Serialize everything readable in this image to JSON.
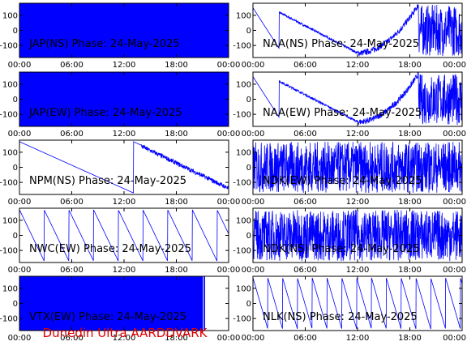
{
  "footer": "Dunedin Ultra AARDDVARK",
  "colors": {
    "trace": "#0000ff",
    "axes": "#000000",
    "footer": "#e00000"
  },
  "chart_data": [
    {
      "type": "line",
      "title": "JAP(NS) Phase: 24-May-2025",
      "pattern": "saturated",
      "xticks": [
        "00:00",
        "06:00",
        "12:00",
        "18:00",
        "00:00"
      ],
      "yticks": [
        "100",
        "0",
        "-100"
      ],
      "ylim": [
        -180,
        180
      ],
      "xlim": [
        0,
        24
      ]
    },
    {
      "type": "line",
      "title": "NAA(NS) Phase: 24-May-2025",
      "pattern": "mixed",
      "xticks": [
        "00:00",
        "06:00",
        "12:00",
        "18:00",
        "00:00"
      ],
      "yticks": [
        "100",
        "0",
        "-100"
      ],
      "ylim": [
        -180,
        180
      ],
      "xlim": [
        0,
        24
      ]
    },
    {
      "type": "line",
      "title": "JAP(EW) Phase: 24-May-2025",
      "pattern": "saturated",
      "xticks": [
        "00:00",
        "06:00",
        "12:00",
        "18:00",
        "00:00"
      ],
      "yticks": [
        "100",
        "0",
        "-100"
      ],
      "ylim": [
        -180,
        180
      ],
      "xlim": [
        0,
        24
      ]
    },
    {
      "type": "line",
      "title": "NAA(EW) Phase: 24-May-2025",
      "pattern": "mixed",
      "xticks": [
        "00:00",
        "06:00",
        "12:00",
        "18:00",
        "00:00"
      ],
      "yticks": [
        "100",
        "0",
        "-100"
      ],
      "ylim": [
        -180,
        180
      ],
      "xlim": [
        0,
        24
      ]
    },
    {
      "type": "line",
      "title": "NPM(NS) Phase: 24-May-2025",
      "pattern": "drift",
      "xticks": [
        "00:00",
        "06:00",
        "12:00",
        "18:00",
        "00:00"
      ],
      "yticks": [
        "100",
        "0",
        "-100"
      ],
      "ylim": [
        -180,
        180
      ],
      "xlim": [
        0,
        24
      ]
    },
    {
      "type": "line",
      "title": "NDK(EW) Phase: 24-May-2025",
      "pattern": "noise",
      "xticks": [
        "00:00",
        "06:00",
        "12:00",
        "18:00",
        "00:00"
      ],
      "yticks": [
        "100",
        "0",
        "-100"
      ],
      "ylim": [
        -180,
        180
      ],
      "xlim": [
        0,
        24
      ]
    },
    {
      "type": "line",
      "title": "NWC(EW) Phase: 24-May-2025",
      "pattern": "sawtooth",
      "xticks": [
        "00:00",
        "06:00",
        "12:00",
        "18:00",
        "00:00"
      ],
      "yticks": [
        "100",
        "0",
        "-100"
      ],
      "ylim": [
        -180,
        180
      ],
      "xlim": [
        0,
        24
      ]
    },
    {
      "type": "line",
      "title": "NDK(NS) Phase: 24-May-2025",
      "pattern": "noise",
      "xticks": [
        "00:00",
        "06:00",
        "12:00",
        "18:00",
        "00:00"
      ],
      "yticks": [
        "100",
        "0",
        "-100"
      ],
      "ylim": [
        -180,
        180
      ],
      "xlim": [
        0,
        24
      ]
    },
    {
      "type": "line",
      "title": "VTX(EW) Phase: 24-May-2025",
      "pattern": "saturated-gap",
      "xticks": [
        "00:00",
        "06:00",
        "12:00",
        "18:00",
        "00:00"
      ],
      "yticks": [
        "100",
        "0",
        "-100"
      ],
      "ylim": [
        -180,
        180
      ],
      "xlim": [
        0,
        24
      ]
    },
    {
      "type": "line",
      "title": "NLK(NS) Phase: 24-May-2025",
      "pattern": "sawtooth-fast",
      "xticks": [
        "00:00",
        "06:00",
        "12:00",
        "18:00",
        "00:00"
      ],
      "yticks": [
        "100",
        "0",
        "-100"
      ],
      "ylim": [
        -180,
        180
      ],
      "xlim": [
        0,
        24
      ]
    }
  ]
}
